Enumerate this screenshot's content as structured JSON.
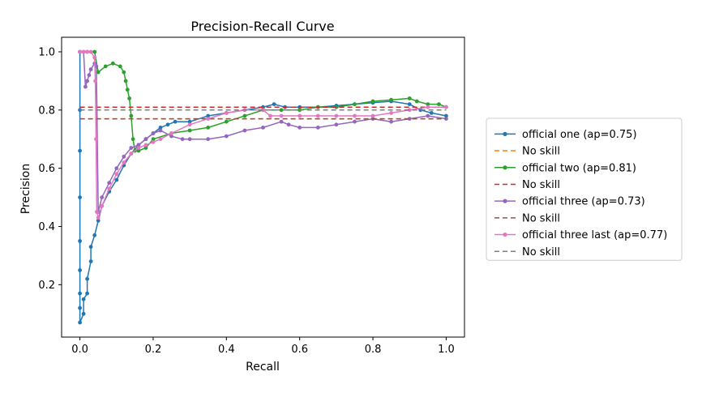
{
  "chart_data": {
    "type": "line",
    "title": "Precision-Recall Curve",
    "xlabel": "Recall",
    "ylabel": "Precision",
    "xlim": [
      -0.05,
      1.05
    ],
    "ylim": [
      0.02,
      1.05
    ],
    "xticks": [
      0.0,
      0.2,
      0.4,
      0.6,
      0.8,
      1.0
    ],
    "xtick_labels": [
      "0.0",
      "0.2",
      "0.4",
      "0.6",
      "0.8",
      "1.0"
    ],
    "yticks": [
      0.2,
      0.4,
      0.6,
      0.8,
      1.0
    ],
    "ytick_labels": [
      "0.2",
      "0.4",
      "0.6",
      "0.8",
      "1.0"
    ],
    "grid": false,
    "legend_position": "outside-right",
    "series": [
      {
        "name": "official one (ap=0.75)",
        "kind": "curve",
        "color": "#1f77b4",
        "x": [
          0.0,
          0.0,
          0.0,
          0.0,
          0.0,
          0.0,
          0.0,
          0.0,
          0.0,
          0.01,
          0.01,
          0.02,
          0.02,
          0.03,
          0.03,
          0.04,
          0.05,
          0.06,
          0.08,
          0.1,
          0.12,
          0.14,
          0.16,
          0.18,
          0.2,
          0.22,
          0.24,
          0.26,
          0.3,
          0.35,
          0.4,
          0.45,
          0.5,
          0.53,
          0.56,
          0.6,
          0.65,
          0.7,
          0.75,
          0.8,
          0.85,
          0.9,
          0.93,
          0.96,
          1.0
        ],
        "y": [
          1.0,
          0.8,
          0.66,
          0.5,
          0.35,
          0.25,
          0.17,
          0.12,
          0.07,
          0.1,
          0.15,
          0.17,
          0.22,
          0.28,
          0.33,
          0.37,
          0.42,
          0.47,
          0.52,
          0.56,
          0.61,
          0.65,
          0.68,
          0.7,
          0.72,
          0.74,
          0.75,
          0.76,
          0.76,
          0.78,
          0.79,
          0.8,
          0.81,
          0.82,
          0.81,
          0.81,
          0.81,
          0.815,
          0.82,
          0.825,
          0.83,
          0.82,
          0.8,
          0.79,
          0.78
        ]
      },
      {
        "name": "No skill",
        "kind": "baseline",
        "color": "#ff7f0e",
        "x": [
          0.0,
          1.0
        ],
        "y": [
          0.77,
          0.77
        ]
      },
      {
        "name": "official two (ap=0.81)",
        "kind": "curve",
        "color": "#2ca02c",
        "x": [
          0.0,
          0.02,
          0.04,
          0.05,
          0.07,
          0.09,
          0.11,
          0.12,
          0.125,
          0.13,
          0.135,
          0.14,
          0.145,
          0.15,
          0.16,
          0.18,
          0.2,
          0.25,
          0.3,
          0.35,
          0.4,
          0.45,
          0.5,
          0.55,
          0.6,
          0.65,
          0.7,
          0.75,
          0.8,
          0.85,
          0.9,
          0.92,
          0.95,
          0.98,
          1.0
        ],
        "y": [
          1.0,
          1.0,
          1.0,
          0.93,
          0.95,
          0.96,
          0.95,
          0.93,
          0.9,
          0.87,
          0.84,
          0.78,
          0.7,
          0.66,
          0.66,
          0.67,
          0.7,
          0.72,
          0.73,
          0.74,
          0.76,
          0.78,
          0.8,
          0.8,
          0.8,
          0.81,
          0.81,
          0.82,
          0.83,
          0.835,
          0.84,
          0.83,
          0.82,
          0.82,
          0.81
        ]
      },
      {
        "name": "No skill",
        "kind": "baseline",
        "color": "#d62728",
        "x": [
          0.0,
          1.0
        ],
        "y": [
          0.81,
          0.81
        ]
      },
      {
        "name": "official three (ap=0.73)",
        "kind": "curve",
        "color": "#9467bd",
        "x": [
          0.0,
          0.01,
          0.015,
          0.02,
          0.025,
          0.03,
          0.04,
          0.045,
          0.05,
          0.06,
          0.08,
          0.1,
          0.12,
          0.14,
          0.16,
          0.18,
          0.2,
          0.22,
          0.25,
          0.28,
          0.3,
          0.35,
          0.4,
          0.45,
          0.5,
          0.55,
          0.57,
          0.6,
          0.65,
          0.7,
          0.75,
          0.8,
          0.85,
          0.9,
          0.95,
          1.0
        ],
        "y": [
          1.0,
          1.0,
          0.88,
          0.9,
          0.92,
          0.94,
          0.96,
          0.95,
          0.45,
          0.5,
          0.55,
          0.6,
          0.64,
          0.67,
          0.68,
          0.7,
          0.72,
          0.73,
          0.71,
          0.7,
          0.7,
          0.7,
          0.71,
          0.73,
          0.74,
          0.76,
          0.75,
          0.74,
          0.74,
          0.75,
          0.76,
          0.77,
          0.76,
          0.77,
          0.78,
          0.77
        ]
      },
      {
        "name": "No skill",
        "kind": "baseline",
        "color": "#8c564b",
        "x": [
          0.0,
          1.0
        ],
        "y": [
          0.77,
          0.77
        ]
      },
      {
        "name": "official three last (ap=0.77)",
        "kind": "curve",
        "color": "#e377c2",
        "x": [
          0.0,
          0.01,
          0.02,
          0.03,
          0.04,
          0.042,
          0.044,
          0.046,
          0.05,
          0.06,
          0.08,
          0.1,
          0.12,
          0.14,
          0.16,
          0.18,
          0.2,
          0.22,
          0.25,
          0.3,
          0.35,
          0.4,
          0.45,
          0.5,
          0.52,
          0.55,
          0.6,
          0.65,
          0.7,
          0.75,
          0.8,
          0.85,
          0.9,
          0.95,
          1.0
        ],
        "y": [
          1.0,
          1.0,
          1.0,
          1.0,
          0.98,
          0.9,
          0.7,
          0.45,
          0.43,
          0.47,
          0.53,
          0.58,
          0.62,
          0.65,
          0.67,
          0.68,
          0.69,
          0.7,
          0.72,
          0.75,
          0.77,
          0.79,
          0.8,
          0.8,
          0.78,
          0.78,
          0.78,
          0.78,
          0.78,
          0.78,
          0.78,
          0.79,
          0.8,
          0.81,
          0.81
        ]
      },
      {
        "name": "No skill",
        "kind": "baseline",
        "color": "#7f7f7f",
        "x": [
          0.0,
          1.0
        ],
        "y": [
          0.8,
          0.8
        ]
      }
    ]
  }
}
